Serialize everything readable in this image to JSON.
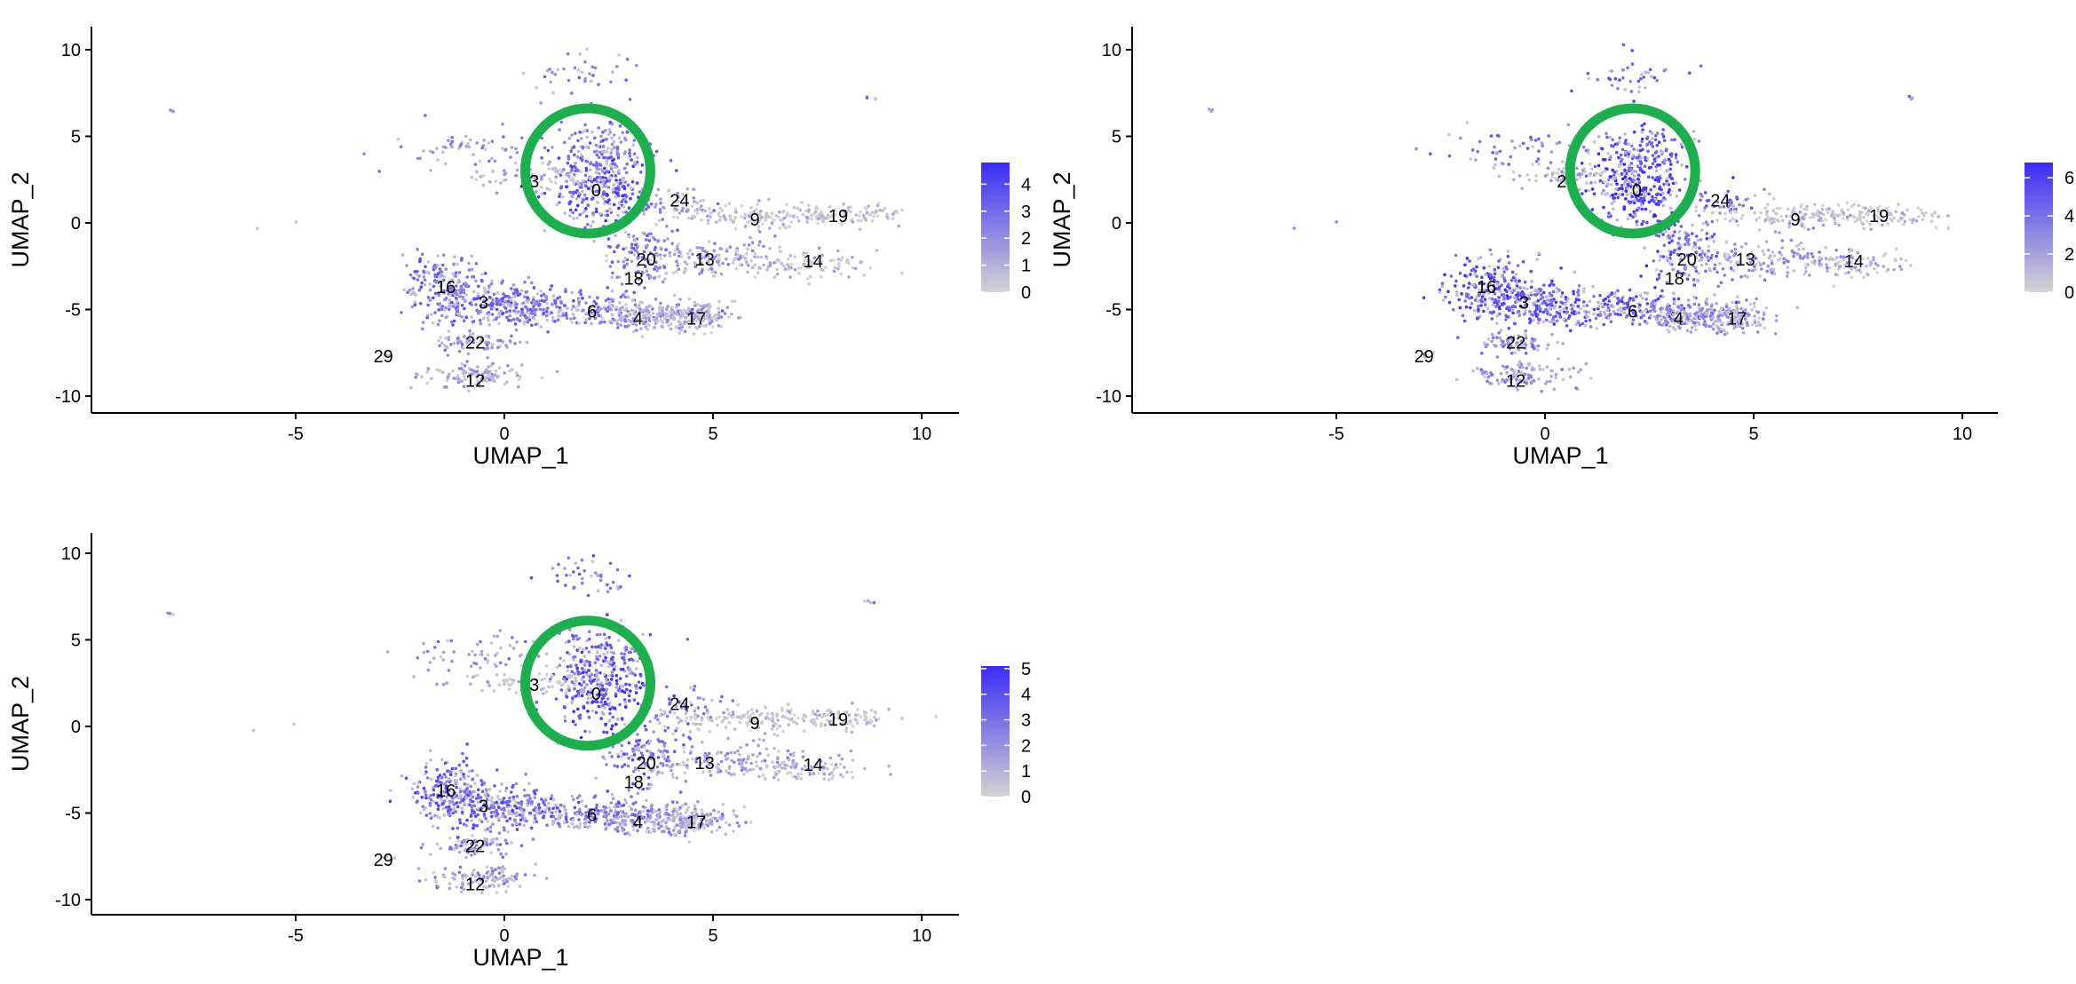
{
  "chart_data": [
    {
      "type": "scatter",
      "panel": "top-left",
      "xlabel": "UMAP_1",
      "ylabel": "UMAP_2",
      "xlim": [
        -10,
        11
      ],
      "ylim": [
        -11,
        11
      ],
      "xticks": [
        -5,
        0,
        5,
        10
      ],
      "yticks": [
        10,
        5,
        0,
        -5,
        -10
      ],
      "color_low": "#d3d3d3",
      "color_high": "#3a2cf5",
      "legend": {
        "max": 4.8,
        "ticks": [
          4,
          3,
          2,
          1,
          0
        ],
        "position": "right"
      },
      "highlight_circle": {
        "cx": 2.0,
        "cy": 3.0,
        "r": 1.5
      },
      "cluster_labels": [
        {
          "label": "0",
          "x": 2.2,
          "y": 1.9
        },
        {
          "label": "23",
          "x": 0.6,
          "y": 2.4
        },
        {
          "label": "24",
          "x": 4.2,
          "y": 1.3
        },
        {
          "label": "9",
          "x": 6.0,
          "y": 0.2
        },
        {
          "label": "19",
          "x": 8.0,
          "y": 0.4
        },
        {
          "label": "20",
          "x": 3.4,
          "y": -2.1
        },
        {
          "label": "13",
          "x": 4.8,
          "y": -2.1
        },
        {
          "label": "14",
          "x": 7.4,
          "y": -2.2
        },
        {
          "label": "18",
          "x": 3.1,
          "y": -3.2
        },
        {
          "label": "16",
          "x": -1.4,
          "y": -3.7
        },
        {
          "label": "3",
          "x": -0.5,
          "y": -4.6
        },
        {
          "label": "6",
          "x": 2.1,
          "y": -5.1
        },
        {
          "label": "4",
          "x": 3.2,
          "y": -5.5
        },
        {
          "label": "17",
          "x": 4.6,
          "y": -5.5
        },
        {
          "label": "22",
          "x": -0.7,
          "y": -6.9
        },
        {
          "label": "29",
          "x": -2.9,
          "y": -7.7
        },
        {
          "label": "12",
          "x": -0.7,
          "y": -9.1
        }
      ]
    },
    {
      "type": "scatter",
      "panel": "top-right",
      "xlabel": "UMAP_1",
      "ylabel": "UMAP_2",
      "xlim": [
        -10,
        11
      ],
      "ylim": [
        -11,
        11
      ],
      "xticks": [
        -5,
        0,
        5,
        10
      ],
      "yticks": [
        10,
        5,
        0,
        -5,
        -10
      ],
      "color_low": "#d3d3d3",
      "color_high": "#3a2cf5",
      "legend": {
        "max": 6.8,
        "ticks": [
          6,
          4,
          2,
          0
        ],
        "position": "right"
      },
      "highlight_circle": {
        "cx": 2.1,
        "cy": 3.0,
        "r": 1.5
      },
      "cluster_labels": [
        {
          "label": "0",
          "x": 2.2,
          "y": 1.9
        },
        {
          "label": "2",
          "x": 0.4,
          "y": 2.4
        },
        {
          "label": "24",
          "x": 4.2,
          "y": 1.3
        },
        {
          "label": "9",
          "x": 6.0,
          "y": 0.2
        },
        {
          "label": "19",
          "x": 8.0,
          "y": 0.4
        },
        {
          "label": "20",
          "x": 3.4,
          "y": -2.1
        },
        {
          "label": "13",
          "x": 4.8,
          "y": -2.1
        },
        {
          "label": "14",
          "x": 7.4,
          "y": -2.2
        },
        {
          "label": "18",
          "x": 3.1,
          "y": -3.2
        },
        {
          "label": "16",
          "x": -1.4,
          "y": -3.7
        },
        {
          "label": "3",
          "x": -0.5,
          "y": -4.6
        },
        {
          "label": "6",
          "x": 2.1,
          "y": -5.1
        },
        {
          "label": "4",
          "x": 3.2,
          "y": -5.5
        },
        {
          "label": "17",
          "x": 4.6,
          "y": -5.5
        },
        {
          "label": "22",
          "x": -0.7,
          "y": -6.9
        },
        {
          "label": "29",
          "x": -2.9,
          "y": -7.7
        },
        {
          "label": "12",
          "x": -0.7,
          "y": -9.1
        }
      ]
    },
    {
      "type": "scatter",
      "panel": "bottom-left",
      "xlabel": "UMAP_1",
      "ylabel": "UMAP_2",
      "xlim": [
        -10,
        11
      ],
      "ylim": [
        -11,
        11
      ],
      "xticks": [
        -5,
        0,
        5,
        10
      ],
      "yticks": [
        10,
        5,
        0,
        -5,
        -10
      ],
      "color_low": "#d3d3d3",
      "color_high": "#3a2cf5",
      "legend": {
        "max": 5.1,
        "ticks": [
          5,
          4,
          3,
          2,
          1,
          0
        ],
        "position": "right"
      },
      "highlight_circle": {
        "cx": 2.0,
        "cy": 2.5,
        "r": 1.5
      },
      "cluster_labels": [
        {
          "label": "0",
          "x": 2.2,
          "y": 1.9
        },
        {
          "label": "23",
          "x": 0.6,
          "y": 2.4
        },
        {
          "label": "24",
          "x": 4.2,
          "y": 1.3
        },
        {
          "label": "9",
          "x": 6.0,
          "y": 0.2
        },
        {
          "label": "19",
          "x": 8.0,
          "y": 0.4
        },
        {
          "label": "20",
          "x": 3.4,
          "y": -2.1
        },
        {
          "label": "13",
          "x": 4.8,
          "y": -2.1
        },
        {
          "label": "14",
          "x": 7.4,
          "y": -2.2
        },
        {
          "label": "18",
          "x": 3.1,
          "y": -3.2
        },
        {
          "label": "16",
          "x": -1.4,
          "y": -3.7
        },
        {
          "label": "3",
          "x": -0.5,
          "y": -4.6
        },
        {
          "label": "6",
          "x": 2.1,
          "y": -5.1
        },
        {
          "label": "4",
          "x": 3.2,
          "y": -5.5
        },
        {
          "label": "17",
          "x": 4.6,
          "y": -5.5
        },
        {
          "label": "22",
          "x": -0.7,
          "y": -6.9
        },
        {
          "label": "29",
          "x": -2.9,
          "y": -7.7
        },
        {
          "label": "12",
          "x": -0.7,
          "y": -9.1
        }
      ]
    }
  ]
}
